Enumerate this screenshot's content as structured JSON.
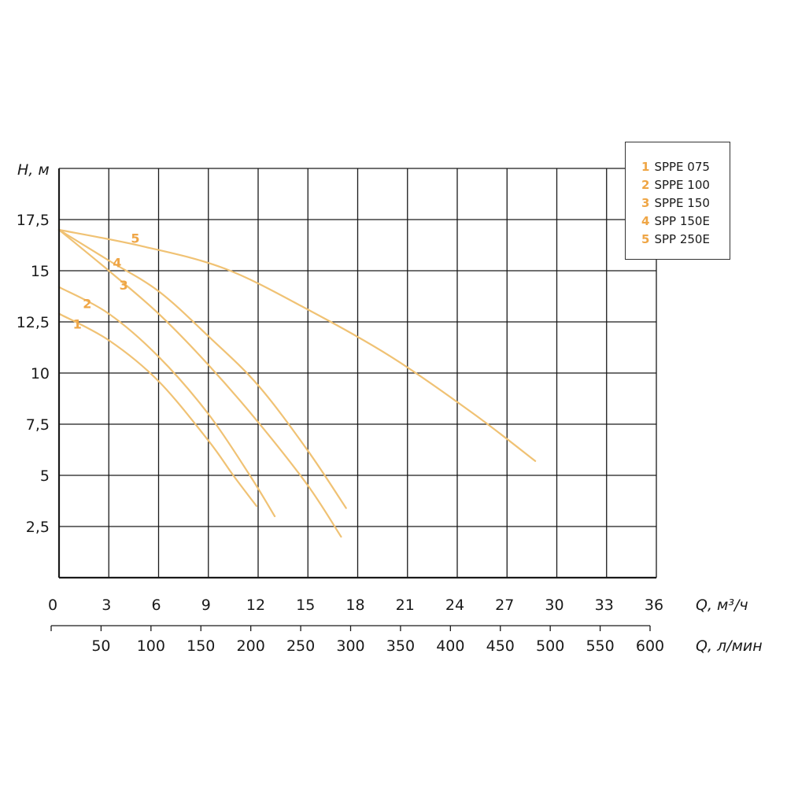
{
  "chart_data": {
    "type": "line",
    "title": "",
    "ylabel": "H, м",
    "xlabel": "Q, м³/ч",
    "xlabel2": "Q, л/мин",
    "xlim": [
      0,
      36
    ],
    "ylim": [
      0,
      20
    ],
    "x_ticks": [
      "0",
      "3",
      "6",
      "9",
      "12",
      "15",
      "18",
      "21",
      "24",
      "27",
      "30",
      "33",
      "36"
    ],
    "x2_ticks": [
      "50",
      "100",
      "150",
      "200",
      "250",
      "300",
      "350",
      "400",
      "450",
      "500",
      "550",
      "600"
    ],
    "y_ticks": [
      "2,5",
      "5",
      "7,5",
      "10",
      "12,5",
      "15",
      "17,5"
    ],
    "grid": true,
    "legend_position": "top-right",
    "curve_color": "#f0c274",
    "label_color": "#efa646",
    "series": [
      {
        "id": "1",
        "name": "SPPE 075",
        "points": [
          [
            0,
            12.9
          ],
          [
            3,
            11.6
          ],
          [
            6,
            9.6
          ],
          [
            9,
            6.7
          ],
          [
            10.5,
            5.0
          ],
          [
            11.9,
            3.5
          ]
        ]
      },
      {
        "id": "2",
        "name": "SPPE 100",
        "points": [
          [
            0,
            14.2
          ],
          [
            3,
            12.9
          ],
          [
            6,
            10.8
          ],
          [
            9,
            8.0
          ],
          [
            11.5,
            5.0
          ],
          [
            13.0,
            3.0
          ]
        ]
      },
      {
        "id": "3",
        "name": "SPPE 150",
        "points": [
          [
            0,
            17.0
          ],
          [
            3,
            15.0
          ],
          [
            6,
            12.9
          ],
          [
            9,
            10.4
          ],
          [
            12,
            7.6
          ],
          [
            15,
            4.5
          ],
          [
            17.0,
            2.0
          ]
        ]
      },
      {
        "id": "4",
        "name": "SPP 150E",
        "points": [
          [
            0,
            17.0
          ],
          [
            3,
            15.5
          ],
          [
            6,
            14.0
          ],
          [
            9,
            11.8
          ],
          [
            12,
            9.4
          ],
          [
            15,
            6.2
          ],
          [
            17.3,
            3.4
          ]
        ]
      },
      {
        "id": "5",
        "name": "SPP 250E",
        "points": [
          [
            0,
            17.0
          ],
          [
            5,
            16.2
          ],
          [
            10,
            15.1
          ],
          [
            15,
            13.1
          ],
          [
            20,
            10.8
          ],
          [
            25,
            8.0
          ],
          [
            28.7,
            5.7
          ]
        ]
      }
    ],
    "curve_labels": [
      {
        "id": "1",
        "x": 1.1,
        "y": 12.4
      },
      {
        "id": "2",
        "x": 1.7,
        "y": 13.4
      },
      {
        "id": "3",
        "x": 3.9,
        "y": 14.3
      },
      {
        "id": "4",
        "x": 3.5,
        "y": 15.4
      },
      {
        "id": "5",
        "x": 4.6,
        "y": 16.6
      }
    ]
  }
}
